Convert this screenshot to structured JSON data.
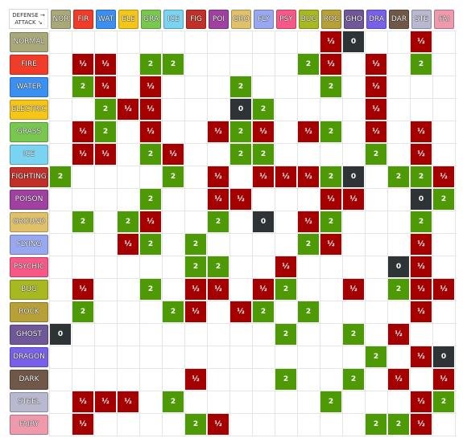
{
  "header": {
    "defense_label": "DEFENSE →",
    "attack_label": "ATTACK ↘"
  },
  "columns": [
    {
      "abbr": "NOR",
      "color": "#a8a878"
    },
    {
      "abbr": "FIR",
      "color": "#f03c28"
    },
    {
      "abbr": "WAT",
      "color": "#3b8ff0"
    },
    {
      "abbr": "ELE",
      "color": "#f5c518"
    },
    {
      "abbr": "GRA",
      "color": "#78c850"
    },
    {
      "abbr": "ICE",
      "color": "#7ad3f0"
    },
    {
      "abbr": "FIG",
      "color": "#c03028"
    },
    {
      "abbr": "POI",
      "color": "#a040a0"
    },
    {
      "abbr": "GRO",
      "color": "#e0c068"
    },
    {
      "abbr": "FLY",
      "color": "#98a8f0"
    },
    {
      "abbr": "PSY",
      "color": "#f85888"
    },
    {
      "abbr": "BUG",
      "color": "#a8b820"
    },
    {
      "abbr": "ROC",
      "color": "#b8a038"
    },
    {
      "abbr": "GHO",
      "color": "#705898"
    },
    {
      "abbr": "DRA",
      "color": "#7860e8"
    },
    {
      "abbr": "DAR",
      "color": "#705848"
    },
    {
      "abbr": "STE",
      "color": "#b8b8d0"
    },
    {
      "abbr": "FAI",
      "color": "#ee99ac"
    }
  ],
  "rows": [
    {
      "name": "NORMAL",
      "color": "#a8a878",
      "cells": [
        "",
        "",
        "",
        "",
        "",
        "",
        "",
        "",
        "",
        "",
        "",
        "",
        "½",
        "0",
        "",
        "",
        "½",
        ""
      ]
    },
    {
      "name": "FIRE",
      "color": "#f03c28",
      "cells": [
        "",
        "½",
        "½",
        "",
        "2",
        "2",
        "",
        "",
        "",
        "",
        "",
        "2",
        "½",
        "",
        "½",
        "",
        "2",
        ""
      ]
    },
    {
      "name": "WATER",
      "color": "#3b8ff0",
      "cells": [
        "",
        "2",
        "½",
        "",
        "½",
        "",
        "",
        "",
        "2",
        "",
        "",
        "",
        "2",
        "",
        "½",
        "",
        "",
        ""
      ]
    },
    {
      "name": "ELECTRIC",
      "color": "#f5c518",
      "cells": [
        "",
        "",
        "2",
        "½",
        "½",
        "",
        "",
        "",
        "0",
        "2",
        "",
        "",
        "",
        "",
        "½",
        "",
        "",
        ""
      ]
    },
    {
      "name": "GRASS",
      "color": "#78c850",
      "cells": [
        "",
        "½",
        "2",
        "",
        "½",
        "",
        "",
        "½",
        "2",
        "½",
        "",
        "½",
        "2",
        "",
        "½",
        "",
        "½",
        ""
      ]
    },
    {
      "name": "ICE",
      "color": "#7ad3f0",
      "cells": [
        "",
        "½",
        "½",
        "",
        "2",
        "½",
        "",
        "",
        "2",
        "2",
        "",
        "",
        "",
        "",
        "2",
        "",
        "½",
        ""
      ]
    },
    {
      "name": "FIGHTING",
      "color": "#c03028",
      "cells": [
        "2",
        "",
        "",
        "",
        "",
        "2",
        "",
        "½",
        "",
        "½",
        "½",
        "½",
        "2",
        "0",
        "",
        "2",
        "2",
        "½"
      ]
    },
    {
      "name": "POISON",
      "color": "#a040a0",
      "cells": [
        "",
        "",
        "",
        "",
        "2",
        "",
        "",
        "½",
        "½",
        "",
        "",
        "",
        "½",
        "½",
        "",
        "",
        "0",
        "2"
      ]
    },
    {
      "name": "GROUND",
      "color": "#e0c068",
      "cells": [
        "",
        "2",
        "",
        "2",
        "½",
        "",
        "",
        "2",
        "",
        "0",
        "",
        "½",
        "2",
        "",
        "",
        "",
        "2",
        ""
      ]
    },
    {
      "name": "FLYING",
      "color": "#98a8f0",
      "cells": [
        "",
        "",
        "",
        "½",
        "2",
        "",
        "2",
        "",
        "",
        "",
        "",
        "2",
        "½",
        "",
        "",
        "",
        "½",
        ""
      ]
    },
    {
      "name": "PSYCHIC",
      "color": "#f85888",
      "cells": [
        "",
        "",
        "",
        "",
        "",
        "",
        "2",
        "2",
        "",
        "",
        "½",
        "",
        "",
        "",
        "",
        "0",
        "½",
        ""
      ]
    },
    {
      "name": "BUG",
      "color": "#a8b820",
      "cells": [
        "",
        "½",
        "",
        "",
        "2",
        "",
        "½",
        "½",
        "",
        "½",
        "2",
        "",
        "",
        "½",
        "",
        "2",
        "½",
        "½"
      ]
    },
    {
      "name": "ROCK",
      "color": "#b8a038",
      "cells": [
        "",
        "2",
        "",
        "",
        "",
        "2",
        "½",
        "",
        "½",
        "2",
        "",
        "2",
        "",
        "",
        "",
        "",
        "½",
        ""
      ]
    },
    {
      "name": "GHOST",
      "color": "#705898",
      "cells": [
        "0",
        "",
        "",
        "",
        "",
        "",
        "",
        "",
        "",
        "",
        "2",
        "",
        "",
        "2",
        "",
        "½",
        "",
        ""
      ]
    },
    {
      "name": "DRAGON",
      "color": "#7860e8",
      "cells": [
        "",
        "",
        "",
        "",
        "",
        "",
        "",
        "",
        "",
        "",
        "",
        "",
        "",
        "",
        "2",
        "",
        "½",
        "0"
      ]
    },
    {
      "name": "DARK",
      "color": "#705848",
      "cells": [
        "",
        "",
        "",
        "",
        "",
        "",
        "½",
        "",
        "",
        "",
        "2",
        "",
        "",
        "2",
        "",
        "½",
        "",
        "½"
      ]
    },
    {
      "name": "STEEL",
      "color": "#b8b8d0",
      "cells": [
        "",
        "½",
        "½",
        "½",
        "",
        "2",
        "",
        "",
        "",
        "",
        "",
        "",
        "2",
        "",
        "",
        "",
        "½",
        "2"
      ]
    },
    {
      "name": "FAIRY",
      "color": "#ee99ac",
      "cells": [
        "",
        "½",
        "",
        "",
        "",
        "",
        "2",
        "½",
        "",
        "",
        "",
        "",
        "",
        "",
        "2",
        "2",
        "½",
        ""
      ]
    }
  ]
}
